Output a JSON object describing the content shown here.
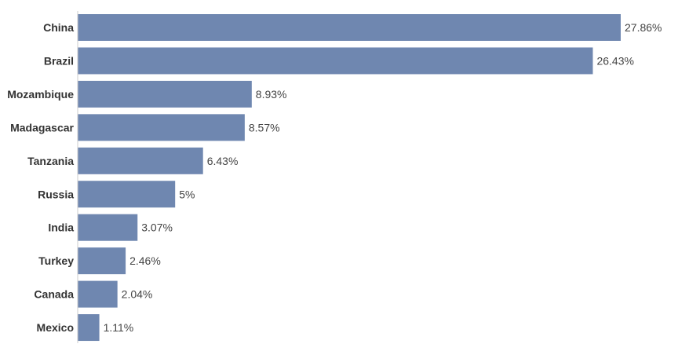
{
  "chart_data": {
    "type": "bar",
    "orientation": "horizontal",
    "categories": [
      "China",
      "Brazil",
      "Mozambique",
      "Madagascar",
      "Tanzania",
      "Russia",
      "India",
      "Turkey",
      "Canada",
      "Mexico"
    ],
    "values": [
      27.86,
      26.43,
      8.93,
      8.57,
      6.43,
      5,
      3.07,
      2.46,
      2.04,
      1.11
    ],
    "value_labels": [
      "27.86%",
      "26.43%",
      "8.93%",
      "8.57%",
      "6.43%",
      "5%",
      "3.07%",
      "2.46%",
      "2.04%",
      "1.11%"
    ],
    "title": "",
    "xlabel": "",
    "ylabel": "",
    "xlim": [
      0,
      27.86
    ],
    "grid": false,
    "legend": "none",
    "bar_color": "#6f87b0",
    "axis_color": "#cccccc"
  }
}
